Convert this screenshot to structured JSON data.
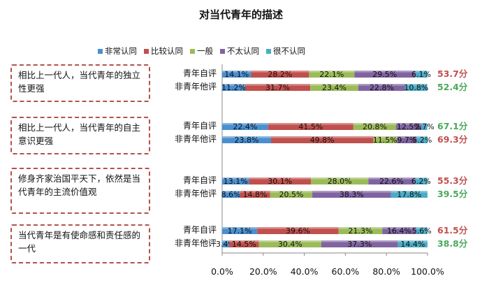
{
  "title": "对当代青年的描述",
  "legend": [
    {
      "label": "非常认同",
      "color": "#4a8fd0"
    },
    {
      "label": "比较认同",
      "color": "#c0504d"
    },
    {
      "label": "一般",
      "color": "#9bbb59"
    },
    {
      "label": "不太认同",
      "color": "#8064a2"
    },
    {
      "label": "很不认同",
      "color": "#4bacc6"
    }
  ],
  "total_colors": {
    "high": "#c0504d",
    "low": "#4aa85a"
  },
  "chart_data": {
    "type": "bar",
    "orientation": "horizontal",
    "stacked": true,
    "title": "对当代青年的描述",
    "xlim": [
      0,
      100
    ],
    "xticks": [
      "0.0%",
      "20.0%",
      "40.0%",
      "60.0%",
      "80.0%",
      "100.0%"
    ],
    "series_names": [
      "非常认同",
      "比较认同",
      "一般",
      "不太认同",
      "很不认同"
    ],
    "groups": [
      {
        "statement": "相比上一代人，当代青年的独立性更强",
        "rows": [
          {
            "label": "青年自评",
            "values": [
              14.1,
              28.2,
              22.1,
              29.5,
              6.1
            ],
            "total": "53.7分",
            "total_color": "high"
          },
          {
            "label": "非青年他评",
            "values": [
              11.2,
              31.7,
              23.4,
              22.8,
              10.8
            ],
            "total": "52.4分",
            "total_color": "low"
          }
        ]
      },
      {
        "statement": "相比上一代人，当代青年的自主意识更强",
        "rows": [
          {
            "label": "青年自评",
            "values": [
              22.4,
              41.5,
              20.8,
              12.5,
              2.7
            ],
            "total": "67.1分",
            "total_color": "low"
          },
          {
            "label": "非青年他评",
            "values": [
              23.8,
              49.8,
              11.5,
              9.7,
              5.2
            ],
            "total": "69.3分",
            "total_color": "high"
          }
        ]
      },
      {
        "statement": "修身齐家治国平天下，依然是当代青年的主流价值观",
        "rows": [
          {
            "label": "青年自评",
            "values": [
              13.1,
              30.1,
              28.0,
              22.6,
              6.2
            ],
            "total": "55.3分",
            "total_color": "high"
          },
          {
            "label": "非青年他评",
            "values": [
              8.6,
              14.8,
              20.5,
              38.3,
              17.8
            ],
            "total": "39.5分",
            "total_color": "low"
          }
        ]
      },
      {
        "statement": "当代青年是有使命感和责任感的一代",
        "rows": [
          {
            "label": "青年自评",
            "values": [
              17.1,
              39.6,
              21.3,
              16.4,
              5.6
            ],
            "total": "61.5分",
            "total_color": "high"
          },
          {
            "label": "非青年他评",
            "values": [
              3.4,
              14.5,
              30.4,
              37.3,
              14.4
            ],
            "total": "38.8分",
            "total_color": "low"
          }
        ]
      }
    ]
  }
}
